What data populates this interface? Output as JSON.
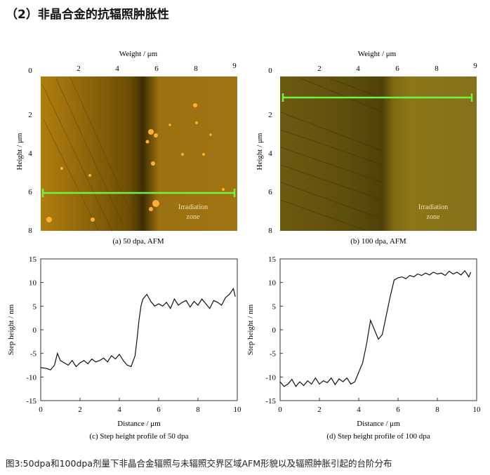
{
  "heading": "（2）非晶合金的抗辐照肿胀性",
  "afm_panels": [
    {
      "id": "a",
      "top_axis_label": "Weight / μm",
      "x_ticks": [
        "2",
        "4",
        "6",
        "8",
        "9"
      ],
      "left_axis_label": "Height / μm",
      "y_ticks": [
        "0",
        "2",
        "4",
        "6",
        "8"
      ],
      "zone_label": [
        "Irradiation",
        "zone"
      ],
      "caption": "(a) 50 dpa, AFM",
      "scan_line_height_um": 6
    },
    {
      "id": "b",
      "top_axis_label": "Weight / μm",
      "x_ticks": [
        "2",
        "4",
        "6",
        "8",
        "9"
      ],
      "left_axis_label": "Height / μm",
      "y_ticks": [
        "0",
        "2",
        "4",
        "6",
        "8"
      ],
      "zone_label": [
        "Irradiation",
        "zone"
      ],
      "caption": "(b) 100 dpa, AFM",
      "scan_line_height_um": 1
    }
  ],
  "chart_data": [
    {
      "type": "line",
      "xlabel": "Distance / μm",
      "ylabel": "Step height / nm",
      "xlim": [
        0,
        10
      ],
      "ylim": [
        -15,
        15
      ],
      "x_ticks": [
        "0",
        "2",
        "4",
        "6",
        "8",
        "10"
      ],
      "y_ticks": [
        "15",
        "10",
        "5",
        "0",
        "-5",
        "-10",
        "-15"
      ],
      "caption": "(c) Step height profile of 50 dpa",
      "series": [
        {
          "x": [
            0,
            0.3,
            0.5,
            0.7,
            0.85,
            1.0,
            1.2,
            1.4,
            1.6,
            1.8,
            2.0,
            2.2,
            2.4,
            2.6,
            2.8,
            3.0,
            3.2,
            3.4,
            3.6,
            3.8,
            4.0,
            4.2,
            4.4,
            4.6,
            4.8,
            4.9,
            5.0,
            5.1,
            5.2,
            5.4,
            5.6,
            5.8,
            6.0,
            6.2,
            6.4,
            6.6,
            6.8,
            7.0,
            7.2,
            7.4,
            7.6,
            7.8,
            8.0,
            8.2,
            8.4,
            8.6,
            8.8,
            9.0,
            9.2,
            9.4,
            9.6,
            9.8,
            9.9
          ],
          "values": [
            -8,
            -8.2,
            -8.5,
            -7.5,
            -5,
            -6.5,
            -7,
            -7.5,
            -6.5,
            -7.8,
            -7,
            -6.5,
            -7.2,
            -6.2,
            -6.8,
            -6.5,
            -6,
            -6.8,
            -5.5,
            -6.2,
            -5.2,
            -6.5,
            -7.5,
            -7.8,
            -5.5,
            -2,
            2,
            5,
            6.5,
            7.5,
            6,
            5,
            5.5,
            5,
            5.8,
            4.5,
            6.5,
            5.2,
            5.8,
            6.2,
            4.8,
            6,
            5.2,
            6.5,
            5.5,
            4.5,
            6.2,
            5.8,
            5.2,
            6.8,
            7.5,
            8.7,
            7
          ]
        }
      ]
    },
    {
      "type": "line",
      "xlabel": "Distance / μm",
      "ylabel": "Step height / nm",
      "xlim": [
        0,
        10
      ],
      "ylim": [
        -15,
        15
      ],
      "x_ticks": [
        "0",
        "2",
        "4",
        "6",
        "8",
        "10"
      ],
      "y_ticks": [
        "15",
        "10",
        "5",
        "0",
        "-5",
        "-10",
        "-15"
      ],
      "caption": "(d) Step height profile of 100 dpa",
      "series": [
        {
          "x": [
            0,
            0.2,
            0.4,
            0.6,
            0.8,
            1.0,
            1.2,
            1.4,
            1.6,
            1.8,
            2.0,
            2.2,
            2.4,
            2.6,
            2.8,
            3.0,
            3.2,
            3.4,
            3.6,
            3.8,
            4.0,
            4.2,
            4.4,
            4.6,
            4.8,
            5.0,
            5.2,
            5.4,
            5.6,
            5.8,
            6.0,
            6.2,
            6.4,
            6.6,
            6.8,
            7.0,
            7.2,
            7.4,
            7.6,
            7.8,
            8.0,
            8.2,
            8.4,
            8.6,
            8.8,
            9.0,
            9.2,
            9.4,
            9.6,
            9.7
          ],
          "values": [
            -11,
            -12,
            -11.5,
            -10.5,
            -12,
            -11,
            -11.8,
            -10.8,
            -11.5,
            -10.2,
            -11.5,
            -10.8,
            -11.2,
            -10.2,
            -11.6,
            -10.4,
            -11,
            -10.2,
            -11.5,
            -11,
            -9,
            -7,
            -3,
            2,
            0,
            -2,
            -1,
            3,
            7,
            10.5,
            11,
            11.2,
            10.8,
            11.5,
            11.2,
            11.8,
            11.5,
            12,
            11.6,
            12.2,
            11.8,
            12,
            11.5,
            12.4,
            11.8,
            12.2,
            11.6,
            12.5,
            11.2,
            12.2
          ]
        }
      ]
    }
  ],
  "figure_caption": "图3:50dpa和100dpa剂量下非晶合金辐照与未辐照交界区域AFM形貌以及辐照肿胀引起的台阶分布"
}
